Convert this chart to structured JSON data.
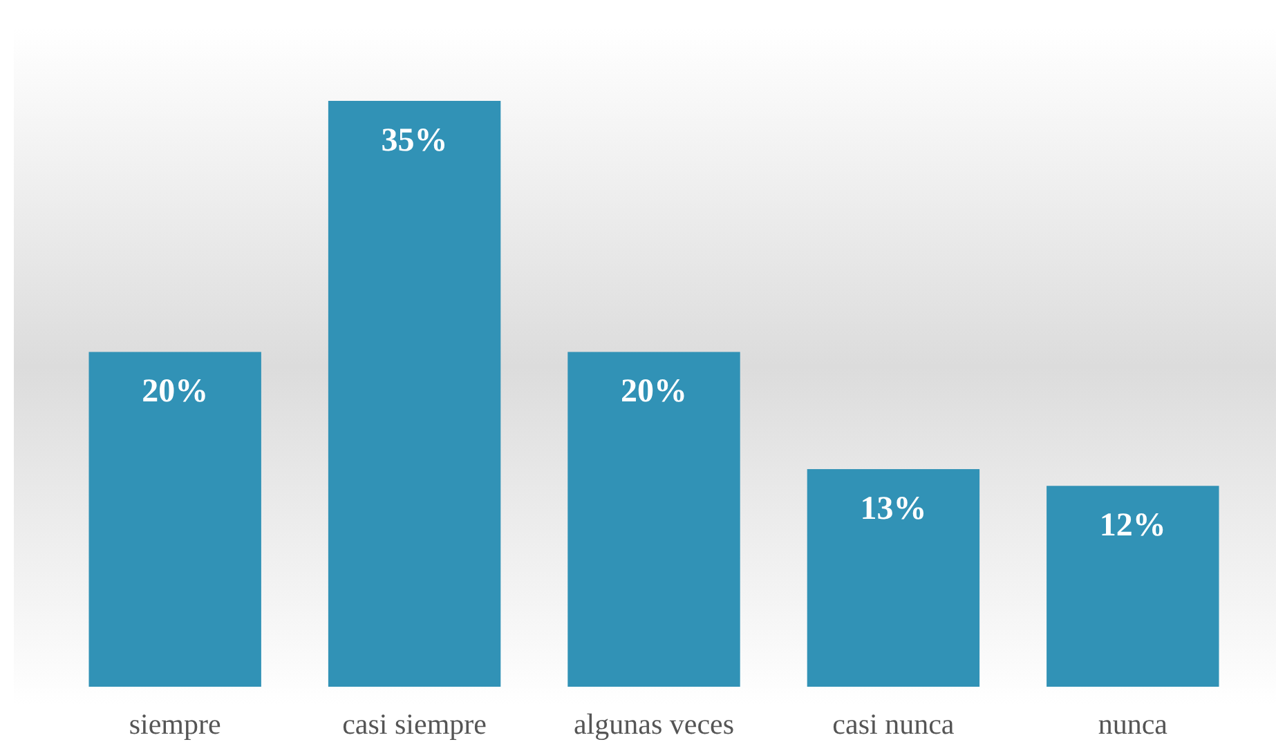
{
  "chart_data": {
    "type": "bar",
    "categories": [
      "siempre",
      "casi siempre",
      "algunas veces",
      "casi nunca",
      "nunca"
    ],
    "values": [
      20,
      35,
      20,
      13,
      12
    ],
    "value_labels": [
      "20%",
      "35%",
      "20%",
      "13%",
      "12%"
    ],
    "color": "#3192b6"
  }
}
